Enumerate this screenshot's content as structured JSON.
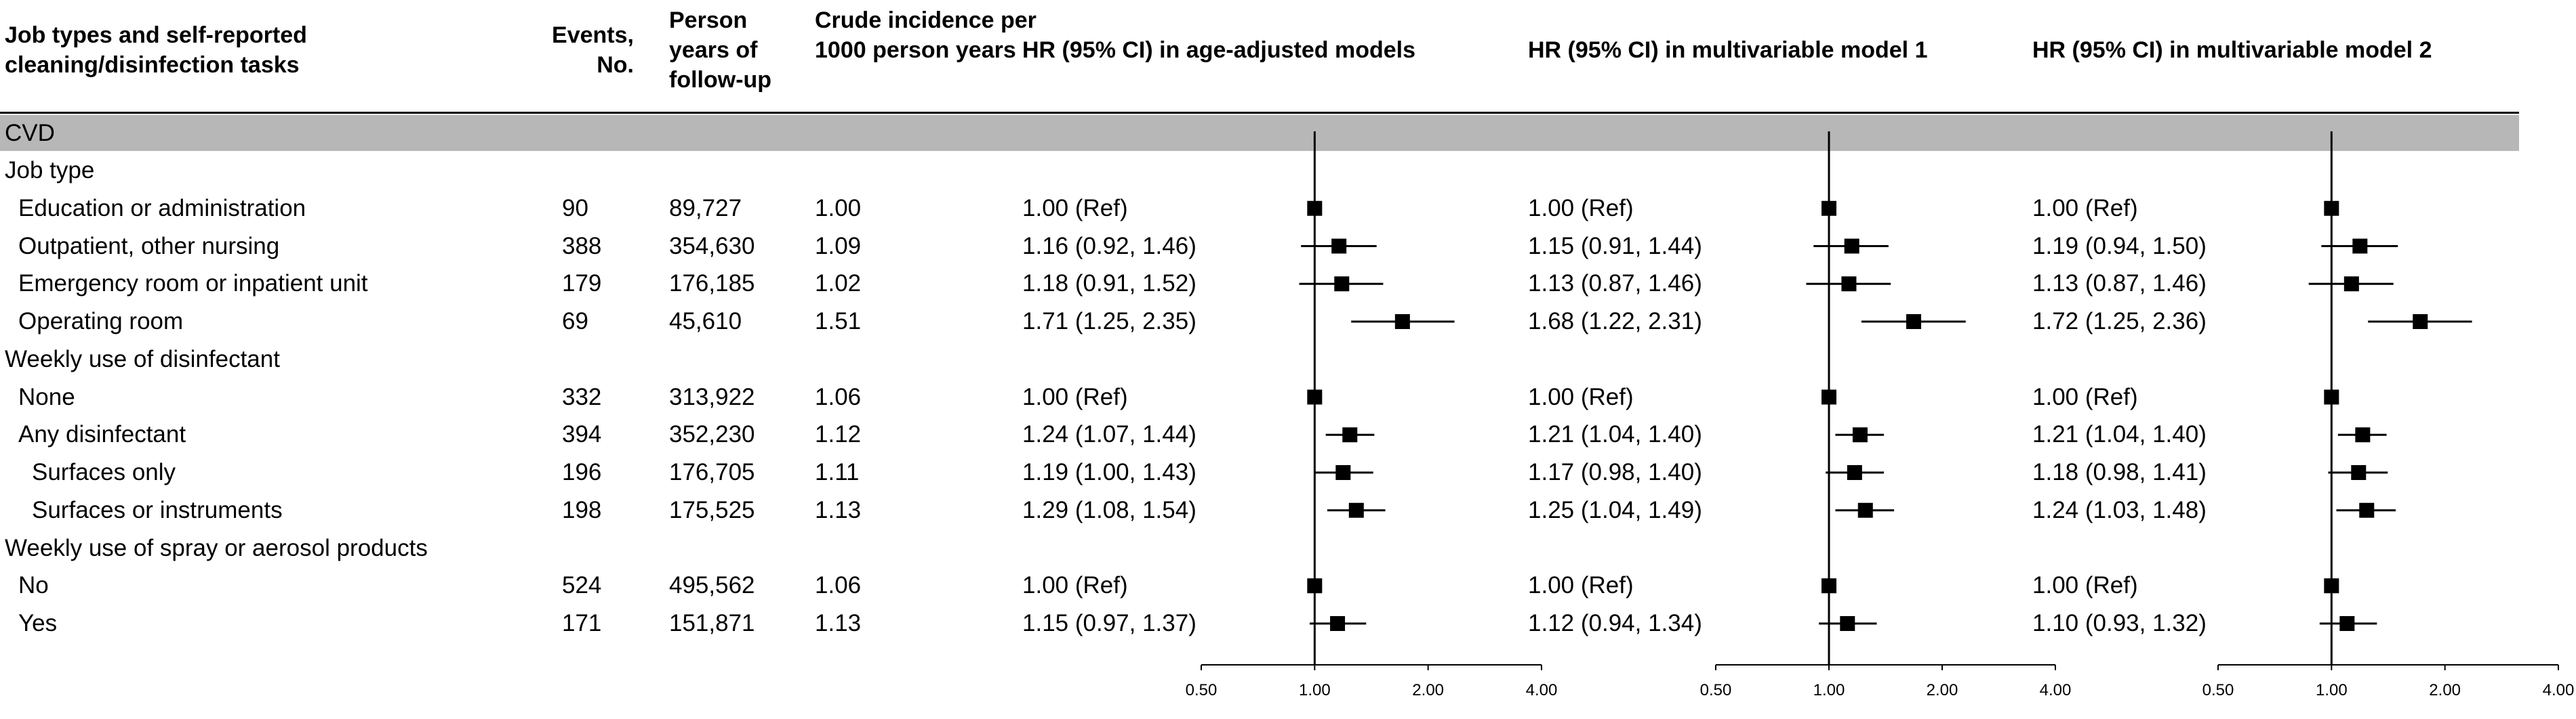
{
  "header": {
    "columns": [
      "Job types and self-reported cleaning/disinfection tasks",
      "Events, No.",
      "Person years of follow-up",
      "Crude incidence per 1000 person years"
    ]
  },
  "section": "CVD",
  "table": {
    "rows": [
      [
        "Job type"
      ],
      [
        "Education or administration",
        "90",
        "89,727",
        "1.00"
      ],
      [
        "Outpatient, other nursing",
        "388",
        "354,630",
        "1.09"
      ],
      [
        "Emergency room or inpatient unit",
        "179",
        "176,185",
        "1.02"
      ],
      [
        "Operating room",
        "69",
        "45,610",
        "1.51"
      ],
      [
        "Weekly use of disinfectant"
      ],
      [
        "None",
        "332",
        "313,922",
        "1.06"
      ],
      [
        "Any disinfectant",
        "394",
        "352,230",
        "1.12"
      ],
      [
        "Surfaces only",
        "196",
        "176,705",
        "1.11"
      ],
      [
        "Surfaces or instruments",
        "198",
        "175,525",
        "1.13"
      ],
      [
        "Weekly use of spray or aerosol products"
      ],
      [
        "No",
        "524",
        "495,562",
        "1.06"
      ],
      [
        "Yes",
        "171",
        "151,871",
        "1.13"
      ]
    ]
  },
  "chart_data": [
    {
      "type": "forest",
      "title": "HR (95% CI) in age-adjusted models",
      "color": "#000000",
      "log_scale": true,
      "values": [
        null,
        1.0,
        1.16,
        1.18,
        1.71,
        null,
        1.0,
        1.24,
        1.19,
        1.29,
        null,
        1.0,
        1.15
      ],
      "lower": [
        null,
        null,
        0.92,
        0.91,
        1.25,
        null,
        null,
        1.07,
        1.0,
        1.08,
        null,
        null,
        0.97
      ],
      "upper": [
        null,
        null,
        1.46,
        1.52,
        2.35,
        null,
        null,
        1.44,
        1.43,
        1.54,
        null,
        null,
        1.37
      ],
      "value_labels": [
        null,
        "1.00 (Ref)",
        "1.16 (0.92, 1.46)",
        "1.18 (0.91, 1.52)",
        "1.71 (1.25, 2.35)",
        null,
        "1.00 (Ref)",
        "1.24 (1.07, 1.44)",
        "1.19 (1.00, 1.43)",
        "1.29 (1.08, 1.54)",
        null,
        "1.00 (Ref)",
        "1.15 (0.97, 1.37)"
      ],
      "xlim": [
        0.5,
        4
      ],
      "xticks": [
        {
          "value": 0.5,
          "label": "0.50"
        },
        {
          "value": 1,
          "label": "1.00"
        },
        {
          "value": 2,
          "label": "2.00"
        },
        {
          "value": 4,
          "label": "4.00"
        }
      ]
    },
    {
      "type": "forest",
      "title": "HR (95% CI) in multivariable model 1",
      "color": "#000000",
      "log_scale": true,
      "values": [
        null,
        1.0,
        1.15,
        1.13,
        1.68,
        null,
        1.0,
        1.21,
        1.17,
        1.25,
        null,
        1.0,
        1.12
      ],
      "lower": [
        null,
        null,
        0.91,
        0.87,
        1.22,
        null,
        null,
        1.04,
        0.98,
        1.04,
        null,
        null,
        0.94
      ],
      "upper": [
        null,
        null,
        1.44,
        1.46,
        2.31,
        null,
        null,
        1.4,
        1.4,
        1.49,
        null,
        null,
        1.34
      ],
      "value_labels": [
        null,
        "1.00 (Ref)",
        "1.15 (0.91, 1.44)",
        "1.13 (0.87, 1.46)",
        "1.68 (1.22, 2.31)",
        null,
        "1.00 (Ref)",
        "1.21 (1.04, 1.40)",
        "1.17 (0.98, 1.40)",
        "1.25 (1.04, 1.49)",
        null,
        "1.00 (Ref)",
        "1.12 (0.94, 1.34)"
      ],
      "xlim": [
        0.5,
        4
      ],
      "xticks": [
        {
          "value": 0.5,
          "label": "0.50"
        },
        {
          "value": 1,
          "label": "1.00"
        },
        {
          "value": 2,
          "label": "2.00"
        },
        {
          "value": 4,
          "label": "4.00"
        }
      ]
    },
    {
      "type": "forest",
      "title": "HR (95% CI) in multivariable model 2",
      "color": "#000000",
      "log_scale": true,
      "values": [
        null,
        1.0,
        1.19,
        1.13,
        1.72,
        null,
        1.0,
        1.21,
        1.18,
        1.24,
        null,
        1.0,
        1.1
      ],
      "lower": [
        null,
        null,
        0.94,
        0.87,
        1.25,
        null,
        null,
        1.04,
        0.98,
        1.03,
        null,
        null,
        0.93
      ],
      "upper": [
        null,
        null,
        1.5,
        1.46,
        2.36,
        null,
        null,
        1.4,
        1.41,
        1.48,
        null,
        null,
        1.32
      ],
      "value_labels": [
        null,
        "1.00 (Ref)",
        "1.19 (0.94, 1.50)",
        "1.13 (0.87, 1.46)",
        "1.72 (1.25, 2.36)",
        null,
        "1.00 (Ref)",
        "1.21 (1.04, 1.40)",
        "1.18 (0.98, 1.41)",
        "1.24 (1.03, 1.48)",
        null,
        "1.00 (Ref)",
        "1.10 (0.93, 1.32)"
      ],
      "xlim": [
        0.5,
        4
      ],
      "xticks": [
        {
          "value": 0.5,
          "label": "0.50"
        },
        {
          "value": 1,
          "label": "1.00"
        },
        {
          "value": 2,
          "label": "2.00"
        },
        {
          "value": 4,
          "label": "4.00"
        }
      ]
    }
  ]
}
